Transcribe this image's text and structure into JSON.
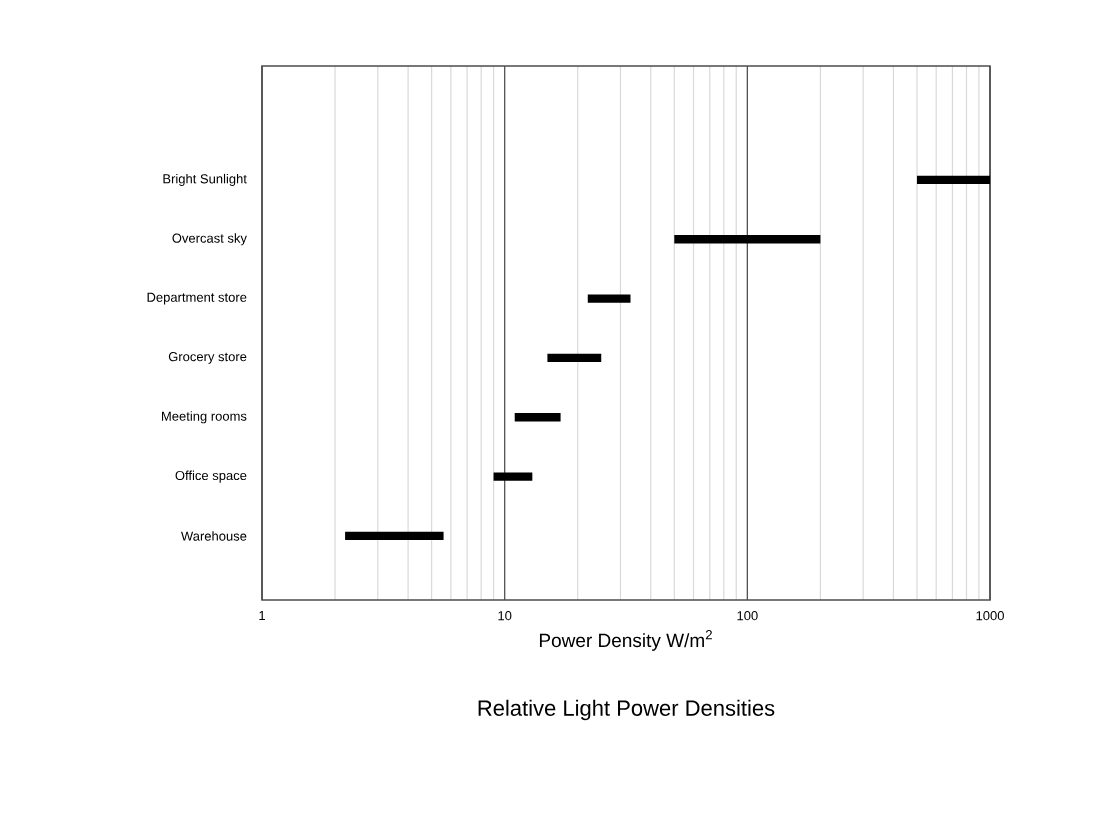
{
  "chart_data": {
    "type": "bar",
    "orientation": "horizontal",
    "title": "Relative Light Power Densities",
    "xlabel": "Power Density W/m$^{2}$",
    "categories": [
      "Bright Sunlight",
      "Overcast sky",
      "Department store",
      "Grocery store",
      "Meeting rooms",
      "Office space",
      "Warehouse"
    ],
    "base": [
      500,
      50,
      22,
      15,
      11,
      9,
      2.2
    ],
    "values": [
      500,
      150,
      11,
      10,
      6,
      4,
      3.4
    ],
    "color": "#000000",
    "log": "x",
    "xlim": [
      1,
      1000
    ],
    "xticks": [
      1,
      10,
      100,
      1000
    ],
    "grid": "x"
  }
}
